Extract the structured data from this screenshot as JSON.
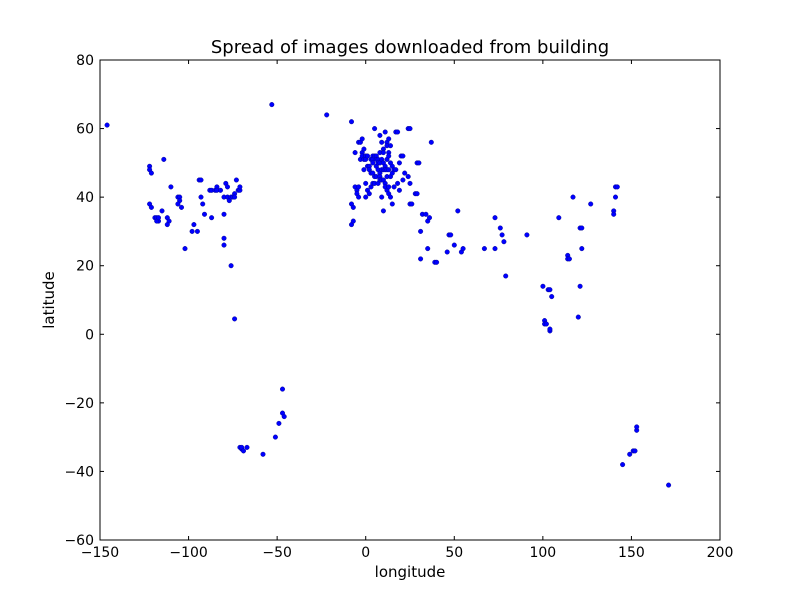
{
  "chart_data": {
    "type": "scatter",
    "title": "Spread of images downloaded from building",
    "xlabel": "longitude",
    "ylabel": "latitude",
    "xlim": [
      -150,
      200
    ],
    "ylim": [
      -60,
      80
    ],
    "xticks": [
      -150,
      -100,
      -50,
      0,
      50,
      100,
      150,
      200
    ],
    "yticks": [
      -60,
      -40,
      -20,
      0,
      20,
      40,
      60,
      80
    ],
    "xtick_labels": [
      "−150",
      "−100",
      "−50",
      "0",
      "50",
      "100",
      "150",
      "200"
    ],
    "ytick_labels": [
      "−60",
      "−40",
      "−20",
      "0",
      "20",
      "40",
      "60",
      "80"
    ],
    "grid": false,
    "marker_color": "#0000ff",
    "points": [
      [
        -146,
        61
      ],
      [
        -53,
        67
      ],
      [
        -22,
        64
      ],
      [
        -122,
        49
      ],
      [
        -122,
        48
      ],
      [
        -121,
        47
      ],
      [
        -114,
        51
      ],
      [
        -110,
        43
      ],
      [
        -122,
        38
      ],
      [
        -121,
        37
      ],
      [
        -119,
        34
      ],
      [
        -118,
        34
      ],
      [
        -117,
        33
      ],
      [
        -118,
        33
      ],
      [
        -117,
        34
      ],
      [
        -115,
        36
      ],
      [
        -112,
        34
      ],
      [
        -111,
        33
      ],
      [
        -112,
        32
      ],
      [
        -106,
        40
      ],
      [
        -105,
        40
      ],
      [
        -105,
        39
      ],
      [
        -106,
        38
      ],
      [
        -104,
        37
      ],
      [
        -102,
        25
      ],
      [
        -98,
        30
      ],
      [
        -97,
        32
      ],
      [
        -95,
        30
      ],
      [
        -94,
        45
      ],
      [
        -93,
        45
      ],
      [
        -93,
        40
      ],
      [
        -92,
        38
      ],
      [
        -91,
        35
      ],
      [
        -88,
        42
      ],
      [
        -87,
        42
      ],
      [
        -87,
        34
      ],
      [
        -85,
        42
      ],
      [
        -84,
        43
      ],
      [
        -84,
        42
      ],
      [
        -82,
        42
      ],
      [
        -80,
        40
      ],
      [
        -80,
        35
      ],
      [
        -79,
        44
      ],
      [
        -78,
        43
      ],
      [
        -78,
        40
      ],
      [
        -77,
        39
      ],
      [
        -76,
        40
      ],
      [
        -75,
        40
      ],
      [
        -74,
        41
      ],
      [
        -74,
        40
      ],
      [
        -73,
        45
      ],
      [
        -72,
        42
      ],
      [
        -71,
        42
      ],
      [
        -71,
        43
      ],
      [
        -80,
        28
      ],
      [
        -80,
        26
      ],
      [
        -76,
        20
      ],
      [
        -74,
        4.5
      ],
      [
        -71,
        -33
      ],
      [
        -70,
        -33.5
      ],
      [
        -70,
        -33
      ],
      [
        -69,
        -34
      ],
      [
        -67,
        -33
      ],
      [
        -58,
        -35
      ],
      [
        -51,
        -30
      ],
      [
        -49,
        -26
      ],
      [
        -47,
        -16
      ],
      [
        -47,
        -23
      ],
      [
        -46,
        -24
      ],
      [
        -8,
        62
      ],
      [
        -8,
        38
      ],
      [
        -8,
        32
      ],
      [
        -7,
        33
      ],
      [
        -7,
        37
      ],
      [
        -6,
        53
      ],
      [
        -6,
        43
      ],
      [
        -5,
        42
      ],
      [
        -5,
        41
      ],
      [
        -4,
        43
      ],
      [
        -4,
        40
      ],
      [
        -4,
        56
      ],
      [
        -3,
        56
      ],
      [
        -3,
        51
      ],
      [
        -2,
        57
      ],
      [
        -2,
        53
      ],
      [
        -2,
        52
      ],
      [
        -1,
        54
      ],
      [
        -1,
        51
      ],
      [
        -1,
        48
      ],
      [
        0,
        52
      ],
      [
        0,
        51
      ],
      [
        0,
        44
      ],
      [
        0,
        40
      ],
      [
        1,
        52
      ],
      [
        1,
        49
      ],
      [
        1,
        42
      ],
      [
        2,
        49
      ],
      [
        2,
        48
      ],
      [
        2,
        41
      ],
      [
        3,
        51
      ],
      [
        3,
        47
      ],
      [
        3,
        43
      ],
      [
        4,
        52
      ],
      [
        4,
        51
      ],
      [
        4,
        50
      ],
      [
        4,
        47
      ],
      [
        4,
        44
      ],
      [
        5,
        60
      ],
      [
        5,
        52
      ],
      [
        5,
        46
      ],
      [
        5,
        44
      ],
      [
        6,
        52
      ],
      [
        6,
        51
      ],
      [
        6,
        49
      ],
      [
        6,
        46
      ],
      [
        7,
        51
      ],
      [
        7,
        50
      ],
      [
        7,
        48
      ],
      [
        7,
        44
      ],
      [
        8,
        58
      ],
      [
        8,
        53
      ],
      [
        8,
        50
      ],
      [
        8,
        47
      ],
      [
        8,
        46
      ],
      [
        8,
        45
      ],
      [
        9,
        56
      ],
      [
        9,
        51
      ],
      [
        9,
        48
      ],
      [
        9,
        45
      ],
      [
        9,
        40
      ],
      [
        10,
        54
      ],
      [
        10,
        53
      ],
      [
        10,
        50
      ],
      [
        10,
        48
      ],
      [
        10,
        45
      ],
      [
        10,
        36
      ],
      [
        11,
        59
      ],
      [
        11,
        49
      ],
      [
        11,
        48
      ],
      [
        11,
        44
      ],
      [
        11,
        43
      ],
      [
        12,
        56
      ],
      [
        12,
        55
      ],
      [
        12,
        51
      ],
      [
        12,
        48
      ],
      [
        12,
        46
      ],
      [
        12,
        42
      ],
      [
        13,
        57
      ],
      [
        13,
        53
      ],
      [
        13,
        52
      ],
      [
        13,
        48
      ],
      [
        13,
        43
      ],
      [
        13,
        41
      ],
      [
        14,
        55
      ],
      [
        14,
        50
      ],
      [
        14,
        46
      ],
      [
        14,
        40
      ],
      [
        15,
        49
      ],
      [
        15,
        47
      ],
      [
        15,
        38
      ],
      [
        16,
        48
      ],
      [
        16,
        43
      ],
      [
        17,
        59
      ],
      [
        17,
        48
      ],
      [
        18,
        59
      ],
      [
        18,
        44
      ],
      [
        19,
        50
      ],
      [
        19,
        42
      ],
      [
        20,
        52
      ],
      [
        21,
        52
      ],
      [
        21,
        45
      ],
      [
        22,
        47
      ],
      [
        24,
        60
      ],
      [
        24,
        46
      ],
      [
        25,
        60
      ],
      [
        25,
        44
      ],
      [
        25,
        38
      ],
      [
        26,
        38
      ],
      [
        28,
        41
      ],
      [
        29,
        41
      ],
      [
        29,
        50
      ],
      [
        30,
        50
      ],
      [
        31,
        30
      ],
      [
        31,
        22
      ],
      [
        32,
        35
      ],
      [
        34,
        35
      ],
      [
        35,
        33
      ],
      [
        35,
        25
      ],
      [
        36,
        34
      ],
      [
        37,
        56
      ],
      [
        39,
        21
      ],
      [
        40,
        21
      ],
      [
        46,
        24
      ],
      [
        47,
        29
      ],
      [
        48,
        29
      ],
      [
        50,
        26
      ],
      [
        52,
        36
      ],
      [
        54,
        24
      ],
      [
        55,
        25
      ],
      [
        67,
        25
      ],
      [
        73,
        34
      ],
      [
        73,
        25
      ],
      [
        76,
        31
      ],
      [
        77,
        29
      ],
      [
        78,
        27
      ],
      [
        79,
        17
      ],
      [
        91,
        29
      ],
      [
        100,
        14
      ],
      [
        101,
        4
      ],
      [
        101,
        3
      ],
      [
        102,
        3
      ],
      [
        103,
        13
      ],
      [
        104,
        13
      ],
      [
        104,
        1
      ],
      [
        104,
        1.5
      ],
      [
        105,
        11
      ],
      [
        109,
        34
      ],
      [
        114,
        23
      ],
      [
        114,
        22
      ],
      [
        115,
        22
      ],
      [
        117,
        40
      ],
      [
        120,
        5
      ],
      [
        121,
        14
      ],
      [
        121,
        31
      ],
      [
        122,
        31
      ],
      [
        122,
        25
      ],
      [
        127,
        38
      ],
      [
        140,
        36
      ],
      [
        140,
        35
      ],
      [
        141,
        43
      ],
      [
        141,
        40
      ],
      [
        142,
        43
      ],
      [
        145,
        -38
      ],
      [
        149,
        -35
      ],
      [
        151,
        -34
      ],
      [
        152,
        -34
      ],
      [
        153,
        -28
      ],
      [
        153,
        -27
      ],
      [
        171,
        -44
      ]
    ]
  }
}
